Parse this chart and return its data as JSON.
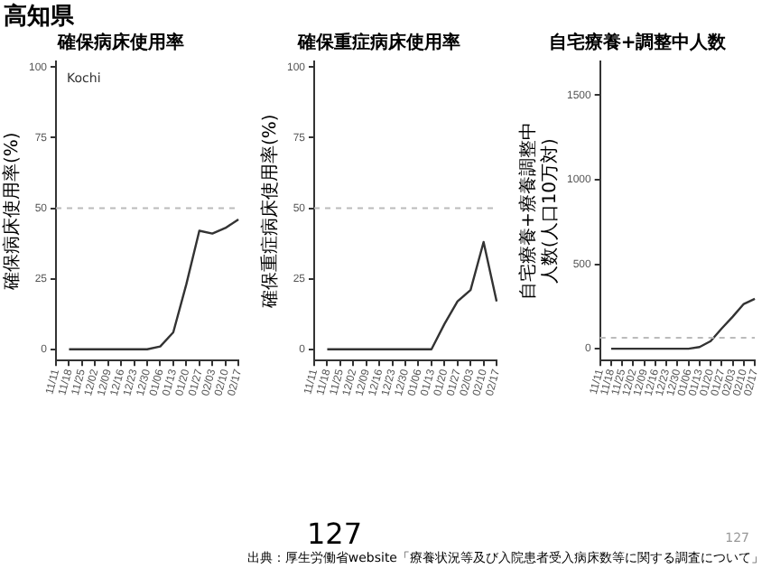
{
  "chart_data": [
    {
      "type": "line",
      "title": "確保病床使用率",
      "ylabel": "確保病床使用率(%)",
      "categories": [
        "11/11",
        "11/18",
        "11/25",
        "12/02",
        "12/09",
        "12/16",
        "12/23",
        "12/30",
        "01/06",
        "01/13",
        "01/20",
        "01/27",
        "02/03",
        "02/10",
        "02/17"
      ],
      "series": [
        {
          "color": "#333333",
          "values": [
            null,
            0,
            0,
            0,
            0,
            0,
            0,
            0,
            1,
            6,
            23,
            42,
            41,
            43,
            46
          ]
        }
      ],
      "ylim": [
        -4,
        102
      ],
      "yticks": [
        0,
        25,
        50,
        75,
        100
      ],
      "grid": false,
      "legend": false,
      "ref_lines": [
        {
          "axis": "y",
          "value": 50,
          "color": "#bbbbbb",
          "line_style": "dashed"
        }
      ],
      "annotations": [
        "Kochi"
      ]
    },
    {
      "type": "line",
      "title": "確保重症病床使用率",
      "ylabel": "確保重症病床使用率(%)",
      "categories": [
        "11/11",
        "11/18",
        "11/25",
        "12/02",
        "12/09",
        "12/16",
        "12/23",
        "12/30",
        "01/06",
        "01/13",
        "01/20",
        "01/27",
        "02/03",
        "02/10",
        "02/17"
      ],
      "series": [
        {
          "color": "#333333",
          "values": [
            null,
            0,
            0,
            0,
            0,
            0,
            0,
            0,
            0,
            0,
            9,
            17,
            21,
            38,
            17
          ]
        }
      ],
      "ylim": [
        -4,
        102
      ],
      "yticks": [
        0,
        25,
        50,
        75,
        100
      ],
      "grid": false,
      "legend": false,
      "ref_lines": [
        {
          "axis": "y",
          "value": 50,
          "color": "#bbbbbb",
          "line_style": "dashed"
        }
      ]
    },
    {
      "type": "line",
      "title": "自宅療養+調整中人数",
      "ylabel": "自宅療養+療養調整中人数(人口10万対)",
      "categories": [
        "11/11",
        "11/18",
        "11/25",
        "12/02",
        "12/09",
        "12/16",
        "12/23",
        "12/30",
        "01/06",
        "01/13",
        "01/20",
        "01/27",
        "02/03",
        "02/10",
        "02/17"
      ],
      "series": [
        {
          "color": "#333333",
          "values": [
            null,
            0,
            0,
            0,
            0,
            0,
            0,
            0,
            0,
            10,
            45,
            120,
            190,
            265,
            295
          ]
        }
      ],
      "ylim": [
        -70,
        1700
      ],
      "yticks": [
        0,
        500,
        1000,
        1500
      ],
      "grid": false,
      "legend": false,
      "ref_lines": [
        {
          "axis": "y",
          "value": 65,
          "color": "#bbbbbb",
          "line_style": "dashed"
        }
      ]
    },
    {
      "type": "other",
      "title": "高知県",
      "annotations": [
        "127",
        "127",
        "出典：厚生労働省website「療養状況等及び入院患者受入病床数等に関する調査について」"
      ]
    }
  ]
}
